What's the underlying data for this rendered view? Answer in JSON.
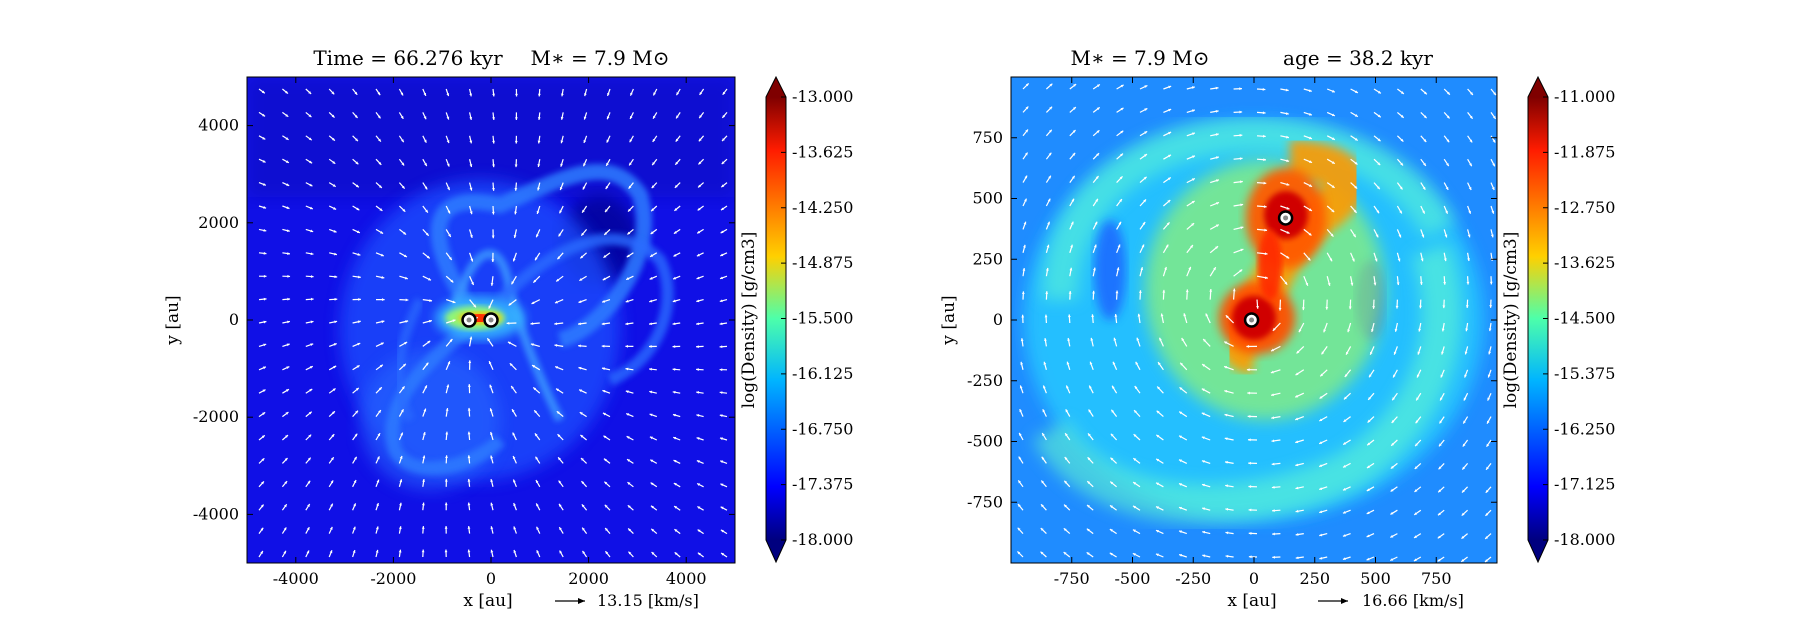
{
  "chart_data": [
    {
      "type": "heatmap",
      "title_left": "Time = 66.276 kyr",
      "title_right": "M∗ = 7.9 M⊙",
      "xlabel": "x [au]",
      "ylabel": "y [au]",
      "xlim": [
        -5000,
        5000
      ],
      "ylim": [
        -5000,
        5000
      ],
      "xticks": [
        "-4000",
        "-2000",
        "0",
        "2000",
        "4000"
      ],
      "yticks": [
        "4000",
        "2000",
        "0",
        "-2000",
        "-4000"
      ],
      "quiver_key": "13.15 [km/s]",
      "colorbar": {
        "label": "log(Density) [g/cm3]",
        "min": -18.0,
        "max": -13.0,
        "ticks": [
          "-13.000",
          "-13.625",
          "-14.250",
          "-14.875",
          "-15.500",
          "-16.125",
          "-16.750",
          "-17.375",
          "-18.000"
        ],
        "colormap": "jet"
      },
      "stars_x_au": [
        -450,
        0
      ],
      "stars_y_au": [
        0,
        0
      ]
    },
    {
      "type": "heatmap",
      "title_left": "M∗ = 7.9 M⊙",
      "title_right": "age = 38.2 kyr",
      "xlabel": "x [au]",
      "ylabel": "y [au]",
      "xlim": [
        -1000,
        1000
      ],
      "ylim": [
        -1000,
        1000
      ],
      "xticks": [
        "-750",
        "-500",
        "-250",
        "0",
        "250",
        "500",
        "750"
      ],
      "yticks": [
        "750",
        "500",
        "250",
        "0",
        "-250",
        "-500",
        "-750"
      ],
      "quiver_key": "16.66 [km/s]",
      "colorbar": {
        "label": "log(Density) [g/cm3]",
        "min": -18.0,
        "max": -11.0,
        "ticks": [
          "-11.000",
          "-11.875",
          "-12.750",
          "-13.625",
          "-14.500",
          "-15.375",
          "-16.250",
          "-17.125",
          "-18.000"
        ],
        "colormap": "jet"
      },
      "stars_x_au": [
        -10,
        130
      ],
      "stars_y_au": [
        0,
        420
      ]
    }
  ]
}
